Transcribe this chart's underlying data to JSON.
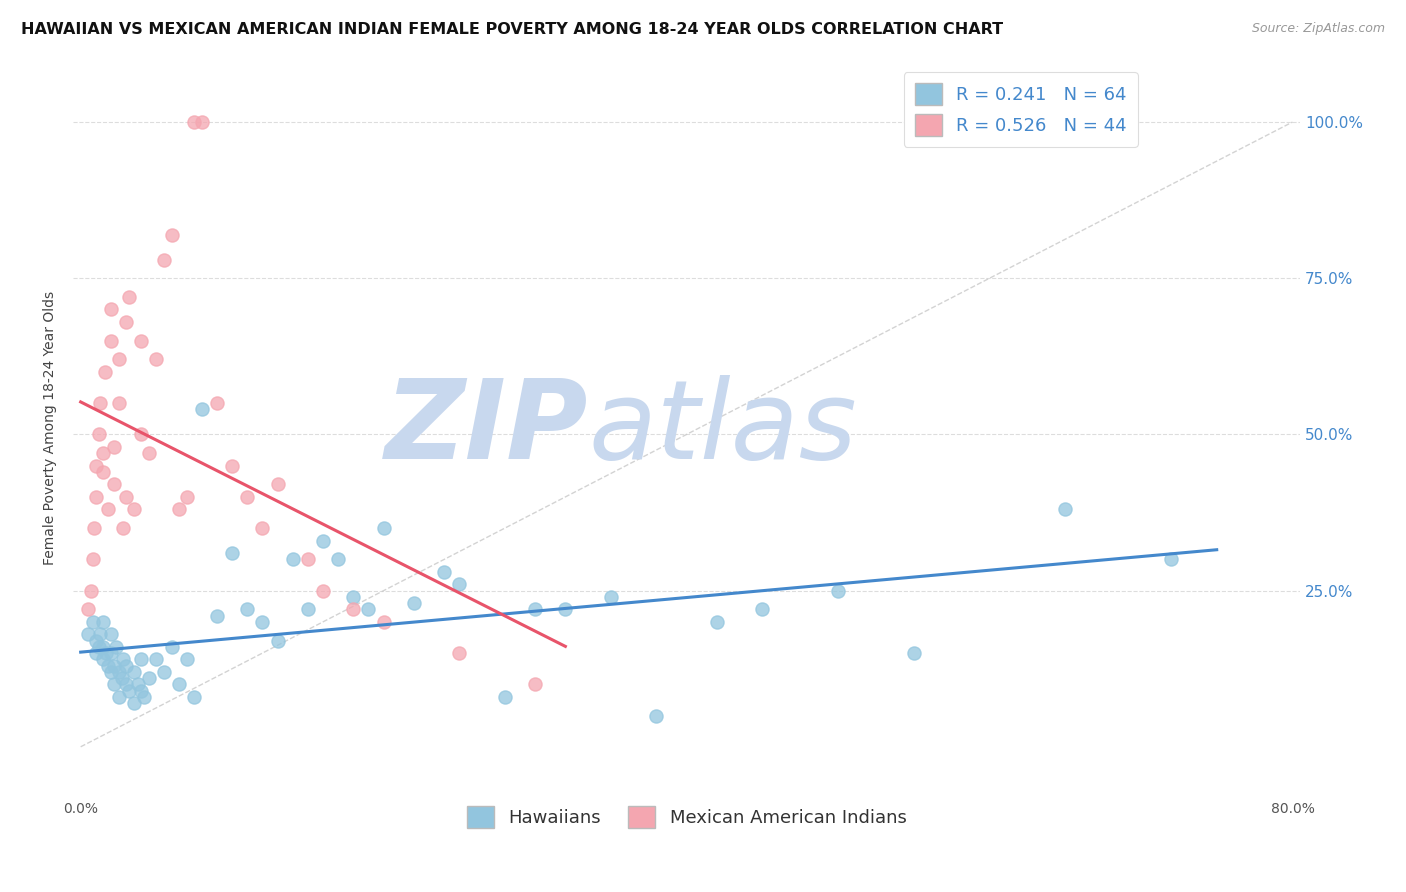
{
  "title": "HAWAIIAN VS MEXICAN AMERICAN INDIAN FEMALE POVERTY AMONG 18-24 YEAR OLDS CORRELATION CHART",
  "source": "Source: ZipAtlas.com",
  "ylabel": "Female Poverty Among 18-24 Year Olds",
  "ytick_labels": [
    "100.0%",
    "75.0%",
    "50.0%",
    "25.0%"
  ],
  "ytick_values": [
    1.0,
    0.75,
    0.5,
    0.25
  ],
  "xlim": [
    0.0,
    0.8
  ],
  "ylim": [
    -0.08,
    1.1
  ],
  "hawaiian_R": 0.241,
  "hawaiian_N": 64,
  "mexican_R": 0.526,
  "mexican_N": 44,
  "hawaiian_color": "#92c5de",
  "mexican_color": "#f4a6b0",
  "hawaiian_line_color": "#4488cc",
  "mexican_line_color": "#e8546a",
  "legend_label_hawaiian": "Hawaiians",
  "legend_label_mexican": "Mexican American Indians",
  "watermark_zip": "ZIP",
  "watermark_atlas": "atlas",
  "watermark_color_zip": "#c8d8ee",
  "watermark_color_atlas": "#c8d8ee",
  "background_color": "#ffffff",
  "grid_color": "#dddddd",
  "title_fontsize": 11.5,
  "axis_label_fontsize": 10,
  "tick_fontsize": 10,
  "legend_fontsize": 13,
  "hawaiian_x": [
    0.005,
    0.008,
    0.01,
    0.01,
    0.012,
    0.013,
    0.015,
    0.015,
    0.015,
    0.017,
    0.018,
    0.02,
    0.02,
    0.02,
    0.022,
    0.022,
    0.023,
    0.025,
    0.025,
    0.027,
    0.028,
    0.03,
    0.03,
    0.032,
    0.035,
    0.035,
    0.038,
    0.04,
    0.04,
    0.042,
    0.045,
    0.05,
    0.055,
    0.06,
    0.065,
    0.07,
    0.075,
    0.08,
    0.09,
    0.1,
    0.11,
    0.12,
    0.13,
    0.14,
    0.15,
    0.16,
    0.17,
    0.18,
    0.19,
    0.2,
    0.22,
    0.24,
    0.25,
    0.28,
    0.3,
    0.32,
    0.35,
    0.38,
    0.42,
    0.45,
    0.5,
    0.55,
    0.65,
    0.72
  ],
  "hawaiian_y": [
    0.18,
    0.2,
    0.15,
    0.17,
    0.16,
    0.18,
    0.14,
    0.16,
    0.2,
    0.15,
    0.13,
    0.12,
    0.15,
    0.18,
    0.1,
    0.13,
    0.16,
    0.08,
    0.12,
    0.11,
    0.14,
    0.1,
    0.13,
    0.09,
    0.07,
    0.12,
    0.1,
    0.09,
    0.14,
    0.08,
    0.11,
    0.14,
    0.12,
    0.16,
    0.1,
    0.14,
    0.08,
    0.54,
    0.21,
    0.31,
    0.22,
    0.2,
    0.17,
    0.3,
    0.22,
    0.33,
    0.3,
    0.24,
    0.22,
    0.35,
    0.23,
    0.28,
    0.26,
    0.08,
    0.22,
    0.22,
    0.24,
    0.05,
    0.2,
    0.22,
    0.25,
    0.15,
    0.38,
    0.3
  ],
  "mexican_x": [
    0.005,
    0.007,
    0.008,
    0.009,
    0.01,
    0.01,
    0.012,
    0.013,
    0.015,
    0.015,
    0.016,
    0.018,
    0.02,
    0.02,
    0.022,
    0.022,
    0.025,
    0.025,
    0.028,
    0.03,
    0.03,
    0.032,
    0.035,
    0.04,
    0.04,
    0.045,
    0.05,
    0.055,
    0.06,
    0.065,
    0.07,
    0.075,
    0.08,
    0.09,
    0.1,
    0.11,
    0.12,
    0.13,
    0.15,
    0.16,
    0.18,
    0.2,
    0.25,
    0.3
  ],
  "mexican_y": [
    0.22,
    0.25,
    0.3,
    0.35,
    0.4,
    0.45,
    0.5,
    0.55,
    0.44,
    0.47,
    0.6,
    0.38,
    0.65,
    0.7,
    0.42,
    0.48,
    0.55,
    0.62,
    0.35,
    0.4,
    0.68,
    0.72,
    0.38,
    0.65,
    0.5,
    0.47,
    0.62,
    0.78,
    0.82,
    0.38,
    0.4,
    1.0,
    1.0,
    0.55,
    0.45,
    0.4,
    0.35,
    0.42,
    0.3,
    0.25,
    0.22,
    0.2,
    0.15,
    0.1
  ]
}
